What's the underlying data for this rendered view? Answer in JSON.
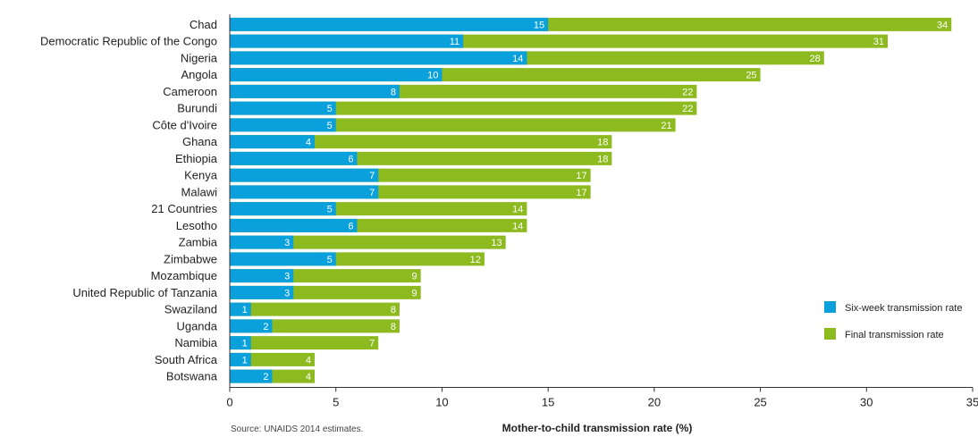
{
  "chart_data": {
    "type": "bar",
    "orientation": "horizontal",
    "stacked_overlay": true,
    "categories": [
      "Chad",
      "Democratic Republic of the Congo",
      "Nigeria",
      "Angola",
      "Cameroon",
      "Burundi",
      "Côte d'Ivoire",
      "Ghana",
      "Ethiopia",
      "Kenya",
      "Malawi",
      "21 Countries",
      "Lesotho",
      "Zambia",
      "Zimbabwe",
      "Mozambique",
      "United Republic of Tanzania",
      "Swaziland",
      "Uganda",
      "Namibia",
      "South Africa",
      "Botswana"
    ],
    "series": [
      {
        "name": "Six-week transmission rate",
        "color": "#0aa0dc",
        "values": [
          15,
          11,
          14,
          10,
          8,
          5,
          5,
          4,
          6,
          7,
          7,
          5,
          6,
          3,
          5,
          3,
          3,
          1,
          2,
          1,
          1,
          2
        ]
      },
      {
        "name": "Final transmission rate",
        "color": "#8dba1e",
        "values": [
          34,
          31,
          28,
          25,
          22,
          22,
          21,
          18,
          18,
          17,
          17,
          14,
          14,
          13,
          12,
          9,
          9,
          8,
          8,
          7,
          4,
          4
        ]
      }
    ],
    "xlabel": "Mother-to-child transmission rate (%)",
    "xlim": [
      0,
      35
    ],
    "xticks": [
      0,
      5,
      10,
      15,
      20,
      25,
      30,
      35
    ],
    "legend_position": "right",
    "source": "Source: UNAIDS 2014 estimates."
  }
}
